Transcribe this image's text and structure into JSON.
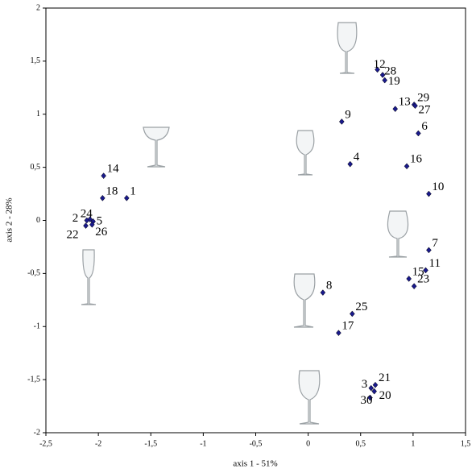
{
  "chart_data": {
    "type": "scatter",
    "x_label": "axis 1 - 51%",
    "y_label": "axis 2 - 28%",
    "xlim": [
      -2.5,
      1.5
    ],
    "ylim": [
      -2,
      2
    ],
    "xticks": [
      {
        "value": -2.5,
        "label": "-2,5"
      },
      -2,
      {
        "value": -1.5,
        "label": "-1,5"
      },
      -1,
      {
        "value": -0.5,
        "label": "-0,5"
      },
      0,
      {
        "value": 0.5,
        "label": "0,5"
      },
      1,
      {
        "value": 1.5,
        "label": "1,5"
      }
    ],
    "yticks": [
      -2,
      {
        "value": -1.5,
        "label": "-1,5"
      },
      -1,
      {
        "value": -0.5,
        "label": "-0,5"
      },
      0,
      {
        "value": 0.5,
        "label": "0,5"
      },
      1,
      {
        "value": 1.5,
        "label": "1,5"
      },
      2
    ],
    "color": "#1a1a8c",
    "labels": [
      "12",
      "28",
      "19",
      "13",
      "29",
      "27",
      "9",
      "6",
      "4",
      "16",
      "10",
      "7",
      "11",
      "15",
      "23",
      "8",
      "25",
      "17",
      "21",
      "3",
      "20",
      "30",
      "14",
      "18",
      "1",
      "24",
      "5",
      "2",
      "26",
      "22"
    ],
    "x": [
      0.66,
      0.71,
      0.73,
      0.83,
      1.01,
      1.02,
      0.32,
      1.05,
      0.4,
      0.94,
      1.15,
      1.15,
      1.12,
      0.96,
      1.01,
      0.14,
      0.42,
      0.29,
      0.64,
      0.6,
      0.63,
      0.59,
      -1.95,
      -1.96,
      -1.73,
      -2.08,
      -2.05,
      -2.11,
      -2.06,
      -2.12
    ],
    "y": [
      1.42,
      1.37,
      1.32,
      1.05,
      1.09,
      1.08,
      0.93,
      0.82,
      0.53,
      0.51,
      0.25,
      -0.28,
      -0.47,
      -0.55,
      -0.62,
      -0.68,
      -0.88,
      -1.06,
      -1.55,
      -1.58,
      -1.61,
      -1.67,
      0.42,
      0.21,
      0.21,
      0.01,
      -0.01,
      0,
      -0.04,
      -0.05
    ]
  }
}
